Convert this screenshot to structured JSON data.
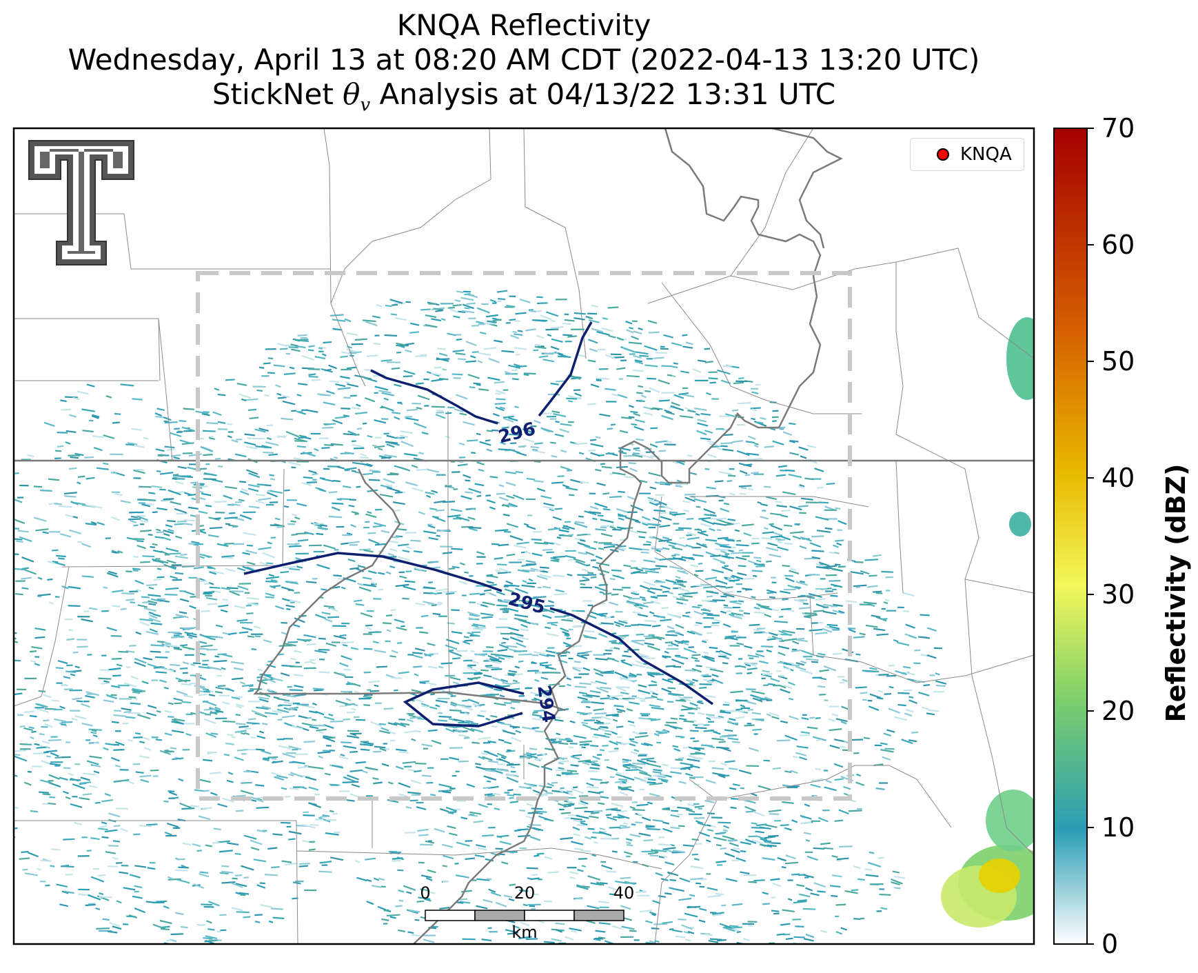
{
  "header": {
    "title_line1": "KNQA Reflectivity",
    "title_line2": "Wednesday, April 13 at 08:20 AM CDT (2022-04-13 13:20 UTC)",
    "title_line3_prefix": "StickNet ",
    "title_line3_theta": "θ",
    "title_line3_sub": "v",
    "title_line3_suffix": " Analysis at 04/13/22 13:31 UTC"
  },
  "legend": {
    "label": "KNQA",
    "marker_color": "#ff0000"
  },
  "colorbar": {
    "label": "Reflectivity (dBZ)",
    "min": 0,
    "max": 70,
    "ticks": [
      0,
      10,
      20,
      30,
      40,
      50,
      60,
      70
    ],
    "stops": [
      "#ffffff",
      "#2a9db5",
      "#7dcf6b",
      "#f3f75a",
      "#e8b800",
      "#d45c00",
      "#a50000"
    ]
  },
  "contours": [
    {
      "label": "296",
      "color": "#0d1f6e"
    },
    {
      "label": "295",
      "color": "#0d1f6e"
    },
    {
      "label": "294",
      "color": "#0d1f6e"
    }
  ],
  "scalebar": {
    "labels": [
      "0",
      "20",
      "40"
    ],
    "unit": "km"
  },
  "logo": {
    "icon": "texas-tech-double-t-logo-icon"
  }
}
